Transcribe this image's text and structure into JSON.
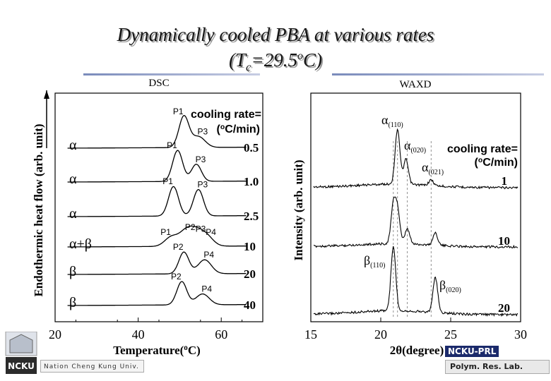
{
  "slide": {
    "title_line1": "Dynamically cooled PBA at various rates",
    "title_line2_prefix": "(T",
    "title_line2_sub": "c",
    "title_line2_mid": "=29.5",
    "title_line2_sup": "o",
    "title_line2_suffix": "C)",
    "footer_left": "Nation Cheng Kung Univ.",
    "footer_right_top": "NCKU-PRL",
    "footer_right_bottom": "Polym. Res. Lab.",
    "logo_text": "NCKU"
  },
  "chart_data": [
    {
      "type": "line",
      "title": "DSC",
      "xlabel": "Temperature(oC)",
      "ylabel": "Endothermic heat flow (arb. unit)",
      "xlim": [
        20,
        70
      ],
      "xticks": [
        20,
        40,
        60
      ],
      "legend_title": "cooling rate=",
      "legend_unit": "(oC/min)",
      "series": [
        {
          "name": "0.5",
          "phase": "α",
          "peak_labels": [
            "P1",
            "P3"
          ],
          "peaks": [
            {
              "x": 51,
              "h": 1.0
            },
            {
              "x": 54.5,
              "h": 0.35
            }
          ]
        },
        {
          "name": "1.0",
          "phase": "α",
          "peak_labels": [
            "P1",
            "P3"
          ],
          "peaks": [
            {
              "x": 49.5,
              "h": 1.0
            },
            {
              "x": 54,
              "h": 0.55
            }
          ]
        },
        {
          "name": "2.5",
          "phase": "α",
          "peak_labels": [
            "P1",
            "P3"
          ],
          "peaks": [
            {
              "x": 48.5,
              "h": 0.95
            },
            {
              "x": 54.5,
              "h": 0.85
            }
          ]
        },
        {
          "name": "10",
          "phase": "α+β",
          "peak_labels": [
            "P1",
            "P2",
            "P3",
            "P4"
          ],
          "peaks": [
            {
              "x": 48,
              "h": 0.3
            },
            {
              "x": 51.5,
              "h": 0.45
            },
            {
              "x": 54,
              "h": 0.4
            },
            {
              "x": 56.5,
              "h": 0.3
            }
          ]
        },
        {
          "name": "20",
          "phase": "β",
          "peak_labels": [
            "P2",
            "P4"
          ],
          "peaks": [
            {
              "x": 51,
              "h": 0.7
            },
            {
              "x": 56,
              "h": 0.45
            }
          ]
        },
        {
          "name": "40",
          "phase": "β",
          "peak_labels": [
            "P2",
            "P4"
          ],
          "peaks": [
            {
              "x": 50.5,
              "h": 0.75
            },
            {
              "x": 55.5,
              "h": 0.35
            }
          ]
        }
      ]
    },
    {
      "type": "line",
      "title": "WAXD",
      "xlabel": "2θ(degree)",
      "ylabel": "Intensity (arb. unit)",
      "xlim": [
        15,
        30
      ],
      "xticks": [
        15,
        20,
        25,
        30
      ],
      "legend_title": "cooling rate=",
      "legend_unit": "(oC/min)",
      "reflections": [
        "α(110)",
        "α(020)",
        "α(021)",
        "β(110)",
        "β(020)"
      ],
      "series": [
        {
          "name": "1",
          "peaks": [
            {
              "x": 21.2,
              "h": 1.0
            },
            {
              "x": 21.8,
              "h": 0.45
            },
            {
              "x": 23.6,
              "h": 0.1
            }
          ]
        },
        {
          "name": "10",
          "peaks": [
            {
              "x": 20.9,
              "h": 0.75
            },
            {
              "x": 21.2,
              "h": 0.65
            },
            {
              "x": 21.9,
              "h": 0.3
            },
            {
              "x": 23.9,
              "h": 0.25
            }
          ]
        },
        {
          "name": "20",
          "peaks": [
            {
              "x": 20.9,
              "h": 1.0
            },
            {
              "x": 23.9,
              "h": 0.55
            }
          ]
        }
      ]
    }
  ]
}
